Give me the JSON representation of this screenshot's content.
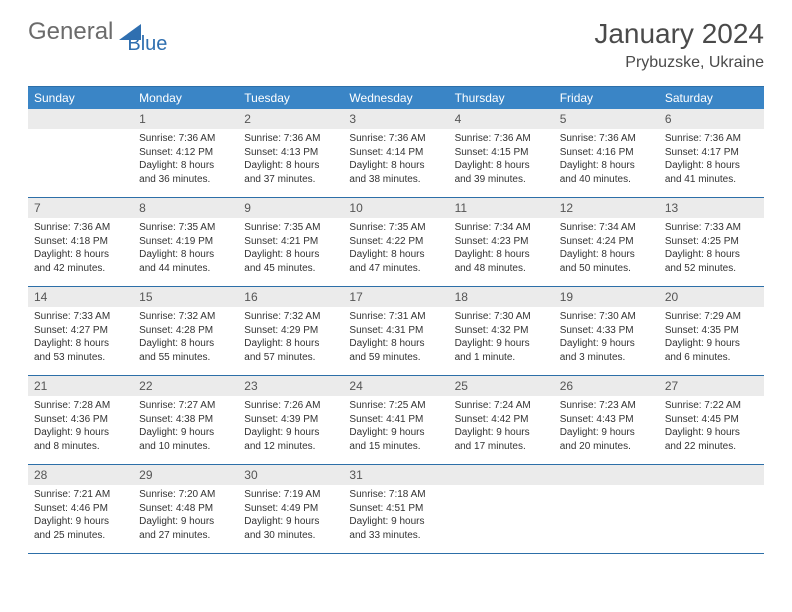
{
  "brand": {
    "part1": "General",
    "part2": "Blue"
  },
  "title": "January 2024",
  "location": "Prybuzske, Ukraine",
  "colors": {
    "header_bg": "#3a85c6",
    "header_text": "#ffffff",
    "border": "#2d6fa8",
    "daynum_bg": "#ebebeb",
    "logo_gray": "#6b6b6b",
    "logo_blue": "#2f6fb0"
  },
  "day_names": [
    "Sunday",
    "Monday",
    "Tuesday",
    "Wednesday",
    "Thursday",
    "Friday",
    "Saturday"
  ],
  "weeks": [
    [
      {
        "n": "",
        "sunrise": "",
        "sunset": "",
        "daylight": ""
      },
      {
        "n": "1",
        "sunrise": "Sunrise: 7:36 AM",
        "sunset": "Sunset: 4:12 PM",
        "daylight": "Daylight: 8 hours and 36 minutes."
      },
      {
        "n": "2",
        "sunrise": "Sunrise: 7:36 AM",
        "sunset": "Sunset: 4:13 PM",
        "daylight": "Daylight: 8 hours and 37 minutes."
      },
      {
        "n": "3",
        "sunrise": "Sunrise: 7:36 AM",
        "sunset": "Sunset: 4:14 PM",
        "daylight": "Daylight: 8 hours and 38 minutes."
      },
      {
        "n": "4",
        "sunrise": "Sunrise: 7:36 AM",
        "sunset": "Sunset: 4:15 PM",
        "daylight": "Daylight: 8 hours and 39 minutes."
      },
      {
        "n": "5",
        "sunrise": "Sunrise: 7:36 AM",
        "sunset": "Sunset: 4:16 PM",
        "daylight": "Daylight: 8 hours and 40 minutes."
      },
      {
        "n": "6",
        "sunrise": "Sunrise: 7:36 AM",
        "sunset": "Sunset: 4:17 PM",
        "daylight": "Daylight: 8 hours and 41 minutes."
      }
    ],
    [
      {
        "n": "7",
        "sunrise": "Sunrise: 7:36 AM",
        "sunset": "Sunset: 4:18 PM",
        "daylight": "Daylight: 8 hours and 42 minutes."
      },
      {
        "n": "8",
        "sunrise": "Sunrise: 7:35 AM",
        "sunset": "Sunset: 4:19 PM",
        "daylight": "Daylight: 8 hours and 44 minutes."
      },
      {
        "n": "9",
        "sunrise": "Sunrise: 7:35 AM",
        "sunset": "Sunset: 4:21 PM",
        "daylight": "Daylight: 8 hours and 45 minutes."
      },
      {
        "n": "10",
        "sunrise": "Sunrise: 7:35 AM",
        "sunset": "Sunset: 4:22 PM",
        "daylight": "Daylight: 8 hours and 47 minutes."
      },
      {
        "n": "11",
        "sunrise": "Sunrise: 7:34 AM",
        "sunset": "Sunset: 4:23 PM",
        "daylight": "Daylight: 8 hours and 48 minutes."
      },
      {
        "n": "12",
        "sunrise": "Sunrise: 7:34 AM",
        "sunset": "Sunset: 4:24 PM",
        "daylight": "Daylight: 8 hours and 50 minutes."
      },
      {
        "n": "13",
        "sunrise": "Sunrise: 7:33 AM",
        "sunset": "Sunset: 4:25 PM",
        "daylight": "Daylight: 8 hours and 52 minutes."
      }
    ],
    [
      {
        "n": "14",
        "sunrise": "Sunrise: 7:33 AM",
        "sunset": "Sunset: 4:27 PM",
        "daylight": "Daylight: 8 hours and 53 minutes."
      },
      {
        "n": "15",
        "sunrise": "Sunrise: 7:32 AM",
        "sunset": "Sunset: 4:28 PM",
        "daylight": "Daylight: 8 hours and 55 minutes."
      },
      {
        "n": "16",
        "sunrise": "Sunrise: 7:32 AM",
        "sunset": "Sunset: 4:29 PM",
        "daylight": "Daylight: 8 hours and 57 minutes."
      },
      {
        "n": "17",
        "sunrise": "Sunrise: 7:31 AM",
        "sunset": "Sunset: 4:31 PM",
        "daylight": "Daylight: 8 hours and 59 minutes."
      },
      {
        "n": "18",
        "sunrise": "Sunrise: 7:30 AM",
        "sunset": "Sunset: 4:32 PM",
        "daylight": "Daylight: 9 hours and 1 minute."
      },
      {
        "n": "19",
        "sunrise": "Sunrise: 7:30 AM",
        "sunset": "Sunset: 4:33 PM",
        "daylight": "Daylight: 9 hours and 3 minutes."
      },
      {
        "n": "20",
        "sunrise": "Sunrise: 7:29 AM",
        "sunset": "Sunset: 4:35 PM",
        "daylight": "Daylight: 9 hours and 6 minutes."
      }
    ],
    [
      {
        "n": "21",
        "sunrise": "Sunrise: 7:28 AM",
        "sunset": "Sunset: 4:36 PM",
        "daylight": "Daylight: 9 hours and 8 minutes."
      },
      {
        "n": "22",
        "sunrise": "Sunrise: 7:27 AM",
        "sunset": "Sunset: 4:38 PM",
        "daylight": "Daylight: 9 hours and 10 minutes."
      },
      {
        "n": "23",
        "sunrise": "Sunrise: 7:26 AM",
        "sunset": "Sunset: 4:39 PM",
        "daylight": "Daylight: 9 hours and 12 minutes."
      },
      {
        "n": "24",
        "sunrise": "Sunrise: 7:25 AM",
        "sunset": "Sunset: 4:41 PM",
        "daylight": "Daylight: 9 hours and 15 minutes."
      },
      {
        "n": "25",
        "sunrise": "Sunrise: 7:24 AM",
        "sunset": "Sunset: 4:42 PM",
        "daylight": "Daylight: 9 hours and 17 minutes."
      },
      {
        "n": "26",
        "sunrise": "Sunrise: 7:23 AM",
        "sunset": "Sunset: 4:43 PM",
        "daylight": "Daylight: 9 hours and 20 minutes."
      },
      {
        "n": "27",
        "sunrise": "Sunrise: 7:22 AM",
        "sunset": "Sunset: 4:45 PM",
        "daylight": "Daylight: 9 hours and 22 minutes."
      }
    ],
    [
      {
        "n": "28",
        "sunrise": "Sunrise: 7:21 AM",
        "sunset": "Sunset: 4:46 PM",
        "daylight": "Daylight: 9 hours and 25 minutes."
      },
      {
        "n": "29",
        "sunrise": "Sunrise: 7:20 AM",
        "sunset": "Sunset: 4:48 PM",
        "daylight": "Daylight: 9 hours and 27 minutes."
      },
      {
        "n": "30",
        "sunrise": "Sunrise: 7:19 AM",
        "sunset": "Sunset: 4:49 PM",
        "daylight": "Daylight: 9 hours and 30 minutes."
      },
      {
        "n": "31",
        "sunrise": "Sunrise: 7:18 AM",
        "sunset": "Sunset: 4:51 PM",
        "daylight": "Daylight: 9 hours and 33 minutes."
      },
      {
        "n": "",
        "sunrise": "",
        "sunset": "",
        "daylight": ""
      },
      {
        "n": "",
        "sunrise": "",
        "sunset": "",
        "daylight": ""
      },
      {
        "n": "",
        "sunrise": "",
        "sunset": "",
        "daylight": ""
      }
    ]
  ]
}
